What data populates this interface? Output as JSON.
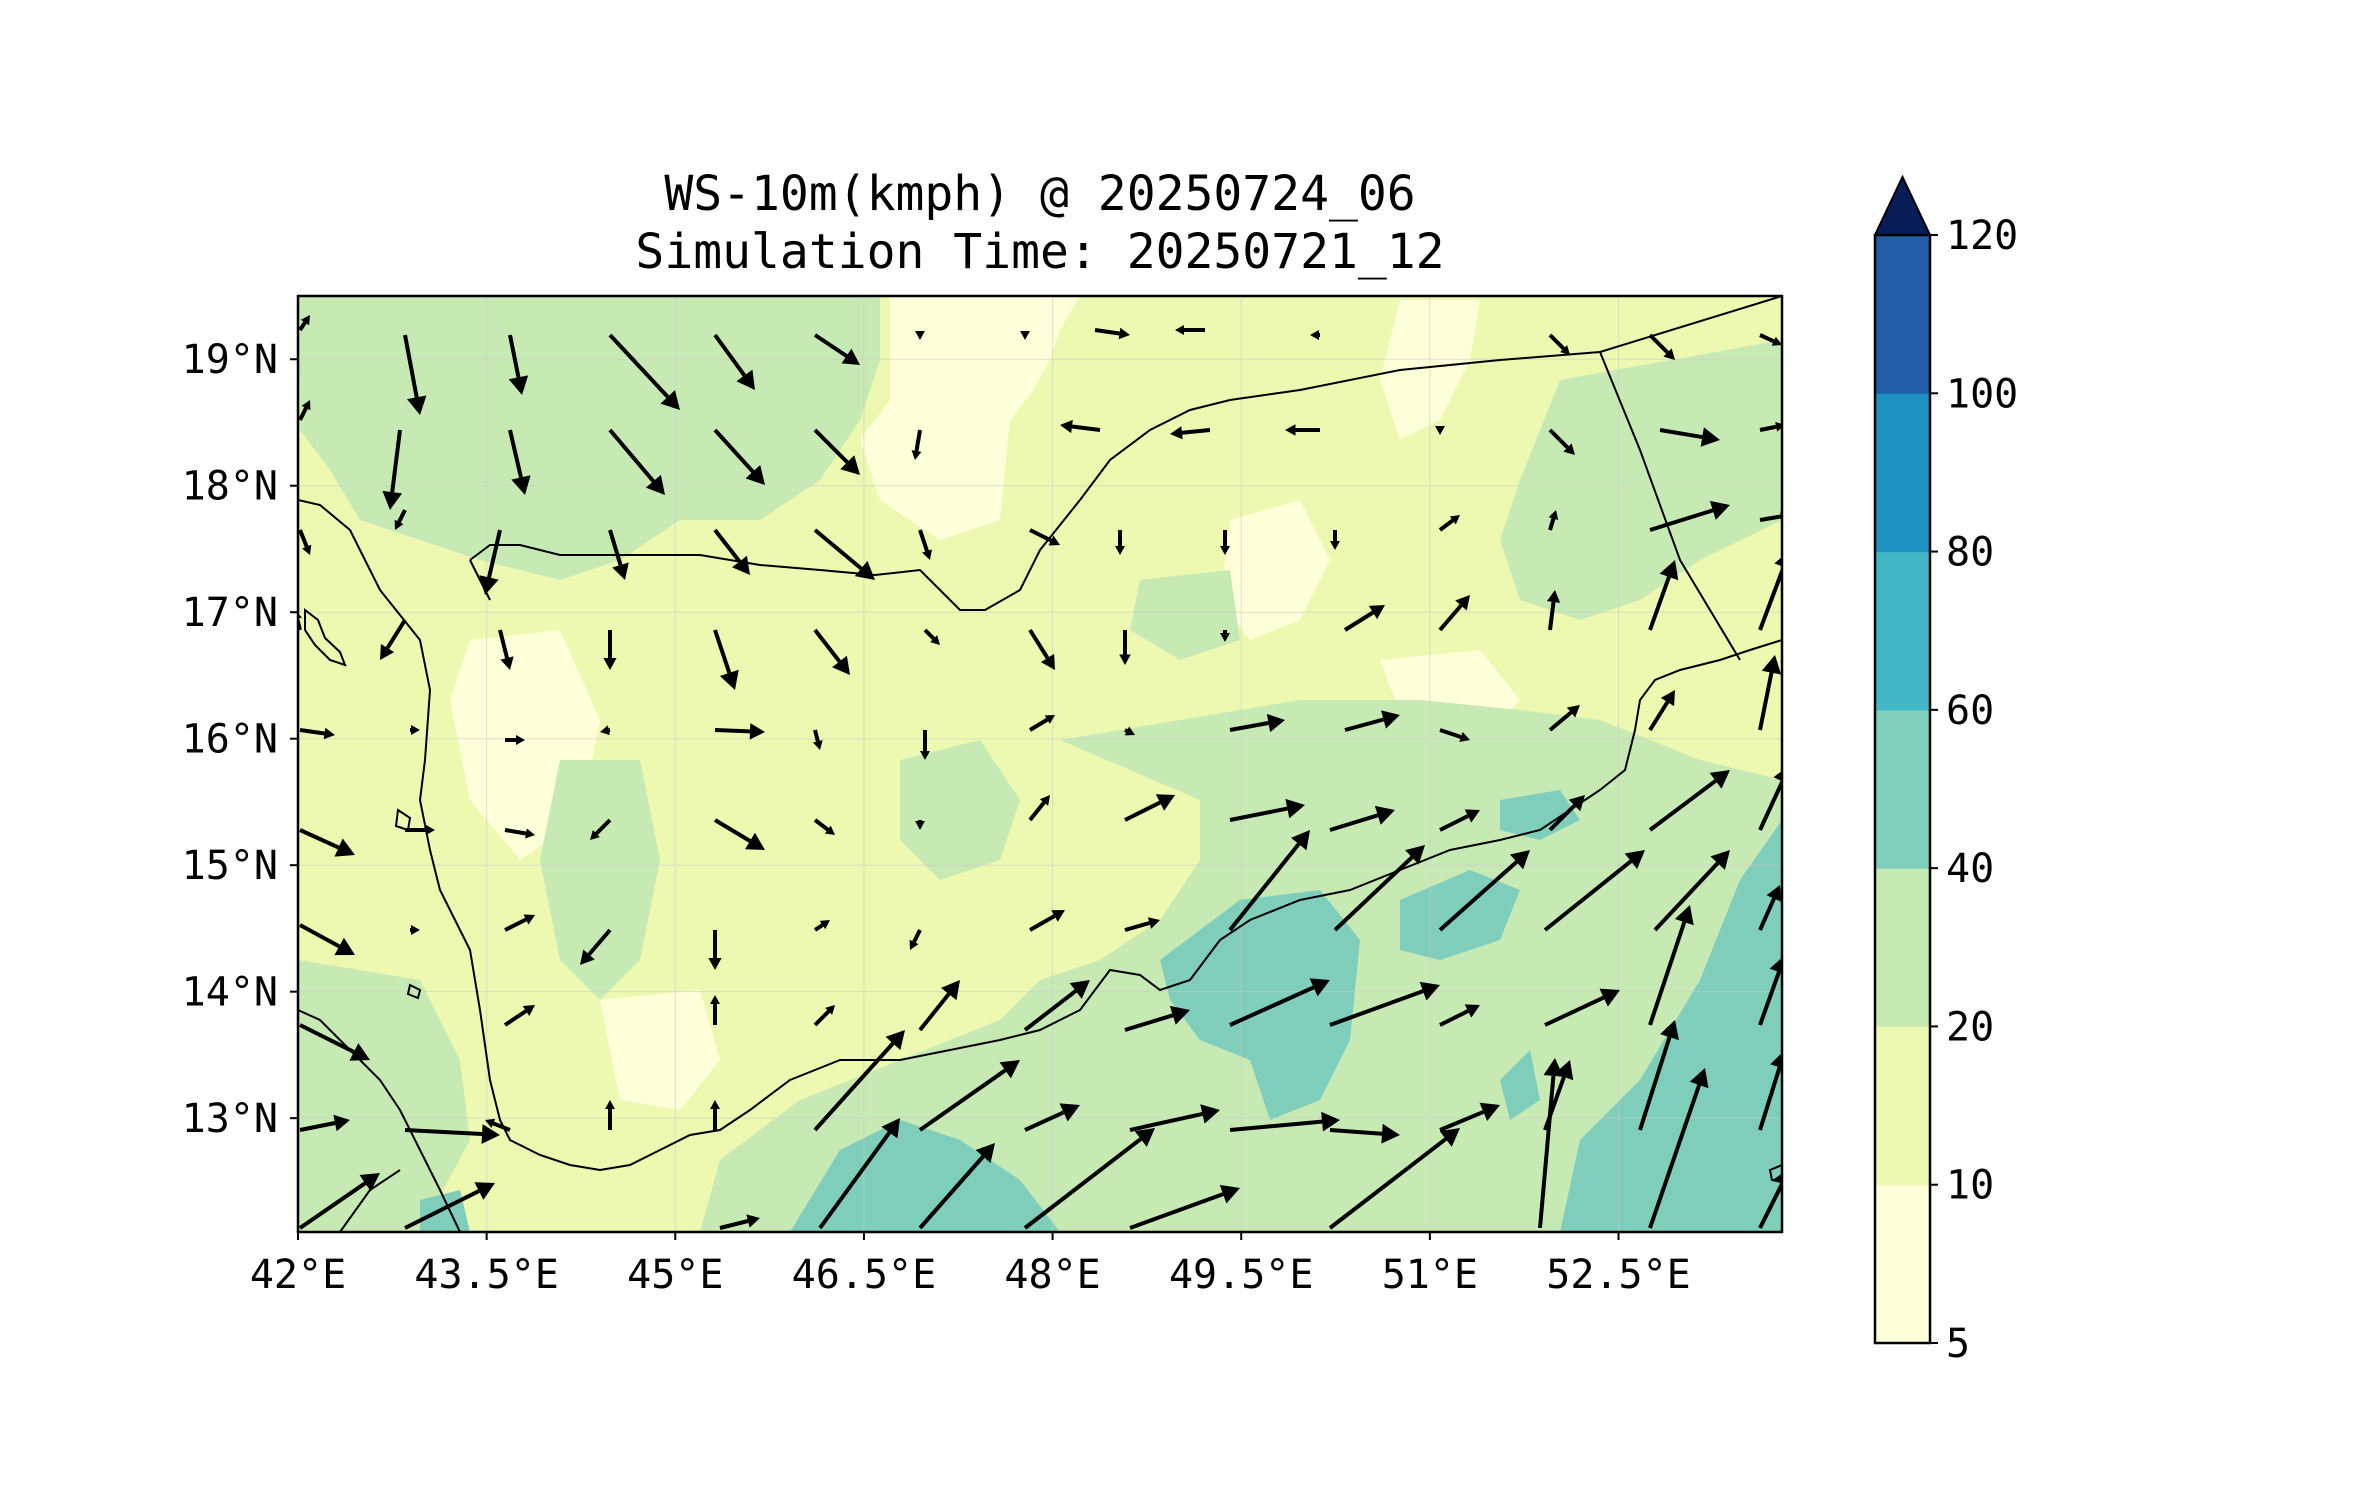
{
  "title": {
    "line1": "WS-10m(kmph) @ 20250724_06",
    "line2": "Simulation Time: 20250721_12"
  },
  "map": {
    "lon_range": [
      42.0,
      53.8
    ],
    "lat_range": [
      12.1,
      19.5
    ],
    "x_ticks": [
      "42°E",
      "43.5°E",
      "45°E",
      "46.5°E",
      "48°E",
      "49.5°E",
      "51°E",
      "52.5°E"
    ],
    "x_tick_values": [
      42.0,
      43.5,
      45.0,
      46.5,
      48.0,
      49.5,
      51.0,
      52.5
    ],
    "y_ticks": [
      "19°N",
      "18°N",
      "17°N",
      "16°N",
      "15°N",
      "14°N",
      "13°N"
    ],
    "y_tick_values": [
      19,
      18,
      17,
      16,
      15,
      14,
      13
    ]
  },
  "colorbar": {
    "levels": [
      5,
      10,
      20,
      40,
      60,
      80,
      100,
      120
    ],
    "labels": [
      "5",
      "10",
      "20",
      "40",
      "60",
      "80",
      "100",
      "120"
    ],
    "colors": [
      "#ffffd9",
      "#edf8b1",
      "#c7e9b4",
      "#7fcdbb",
      "#41b6c4",
      "#1d91c0",
      "#225ea8",
      "#0c2c84"
    ],
    "extend_color": "#081d58",
    "extend": "max"
  },
  "colors": {
    "land_base": "#edf8b1",
    "low_wind": "#ffffd9",
    "moderate": "#c7e9b4",
    "strong": "#7fcdbb",
    "coast": "#000000",
    "arrow": "#000000"
  }
}
